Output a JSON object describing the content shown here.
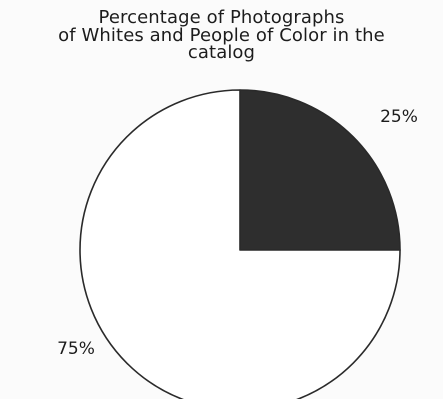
{
  "chart_data": {
    "type": "pie",
    "title_lines": [
      "Percentage of Photographs",
      "of Whites and People of Color in the",
      "catalog"
    ],
    "slices": [
      {
        "value": 25,
        "label": "25%",
        "color": "#2e2e2e"
      },
      {
        "value": 75,
        "label": "75%",
        "color": "#ffffff"
      }
    ],
    "start_angle_deg": 0,
    "direction": "clockwise-from-top",
    "legend": "none"
  }
}
